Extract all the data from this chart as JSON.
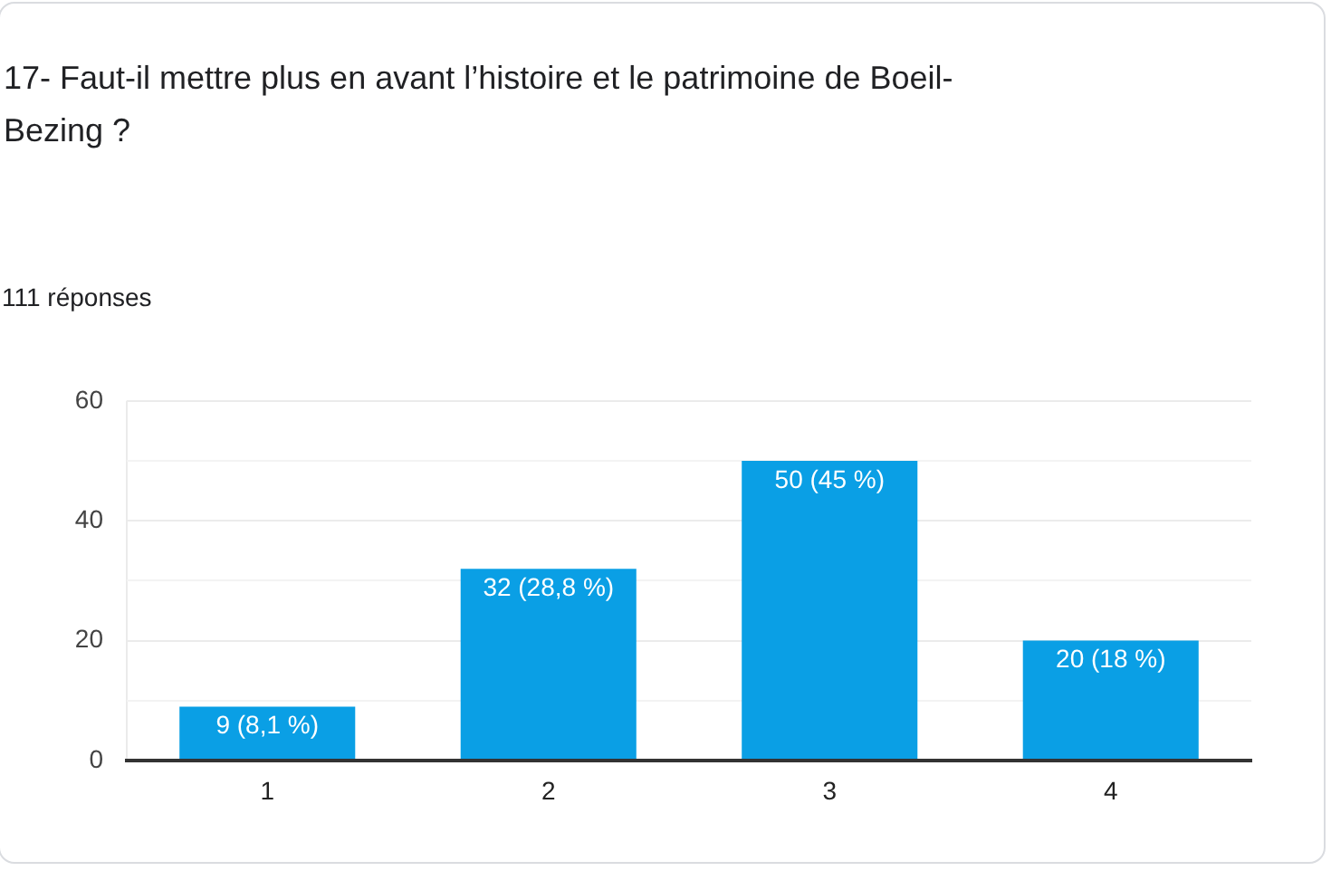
{
  "chart_data": {
    "type": "bar",
    "title": "17- Faut-il mettre plus en avant l’histoire et le patrimoine de Boeil-Bezing ?",
    "subtitle": "111 réponses",
    "categories": [
      "1",
      "2",
      "3",
      "4"
    ],
    "values": [
      9,
      32,
      50,
      20
    ],
    "color": "#0a9fe5",
    "value_labels": [
      "9 (8,1 %)",
      "32 (28,8 %)",
      "50 (45 %)",
      "20 (18 %)"
    ],
    "ylim": [
      0,
      60
    ],
    "yticks": [
      0,
      {
        "value": 10,
        "label": null
      },
      20,
      {
        "value": 30,
        "label": null
      },
      40,
      {
        "value": 50,
        "label": null
      },
      60
    ],
    "grid": "y"
  }
}
